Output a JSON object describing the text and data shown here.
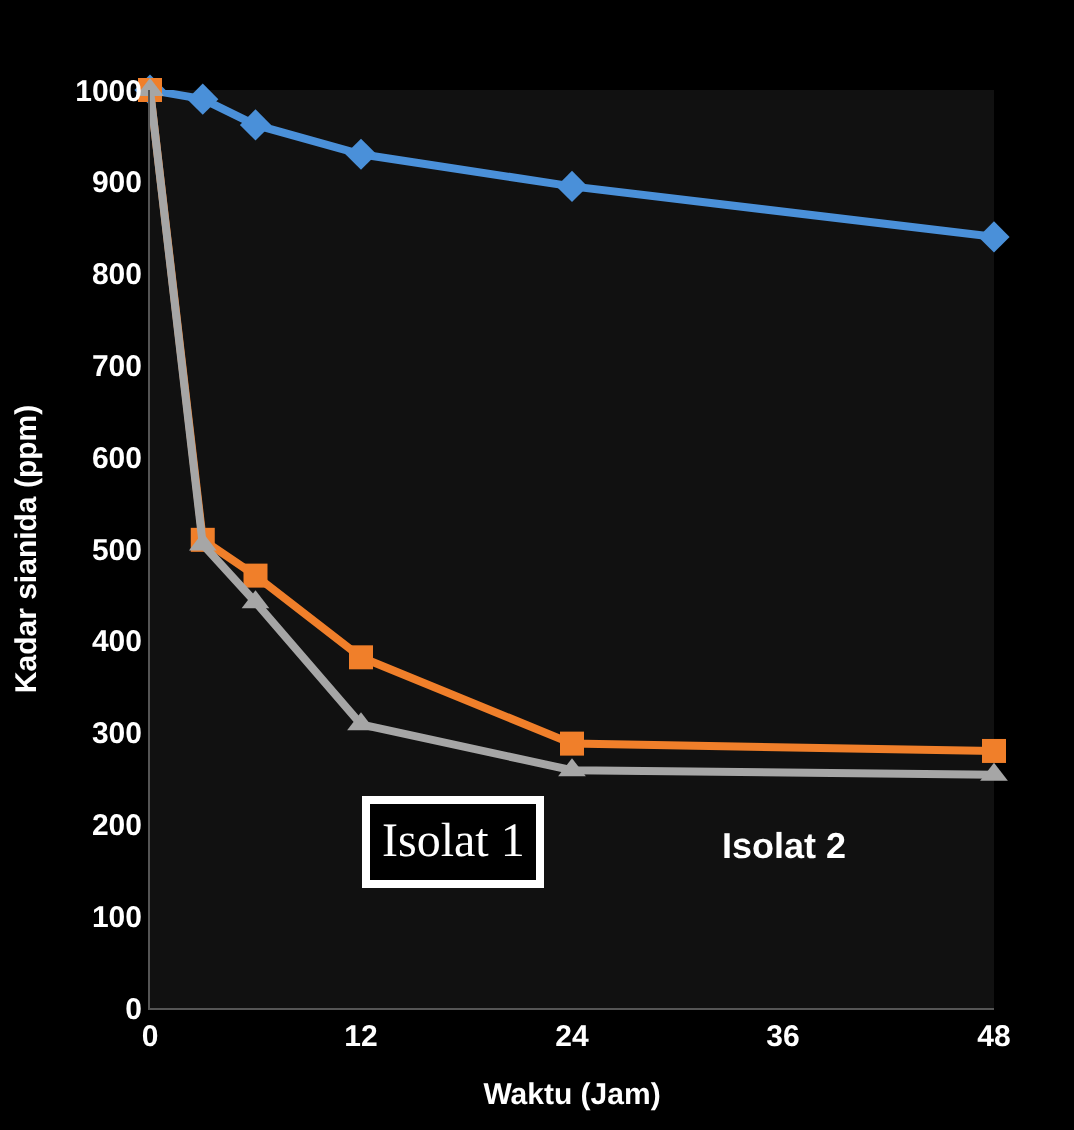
{
  "chart_data": {
    "type": "line",
    "xlabel": "Waktu (Jam)",
    "ylabel": "Kadar sianida (ppm)",
    "x": [
      0,
      3,
      6,
      12,
      24,
      48
    ],
    "series": [
      {
        "color": "#4a90d9",
        "marker": "diamond",
        "values": [
          1000,
          990,
          962,
          930,
          895,
          840
        ]
      },
      {
        "color": "#f07f2a",
        "marker": "square",
        "values": [
          1000,
          510,
          471,
          382,
          288,
          280
        ]
      },
      {
        "color": "#a6a6a6",
        "marker": "triangle",
        "values": [
          1000,
          505,
          442,
          309,
          259,
          254
        ]
      }
    ],
    "xlim": [
      0,
      48
    ],
    "xticks": [
      0,
      12,
      24,
      36,
      48
    ],
    "ylim": [
      0,
      1000
    ],
    "yticks": [
      0,
      100,
      200,
      300,
      400,
      500,
      600,
      700,
      800,
      900,
      1000
    ],
    "grid": false,
    "legend": false,
    "line_style": "solid",
    "annotations": [
      "Isolat 1",
      "Isolat 2"
    ]
  }
}
